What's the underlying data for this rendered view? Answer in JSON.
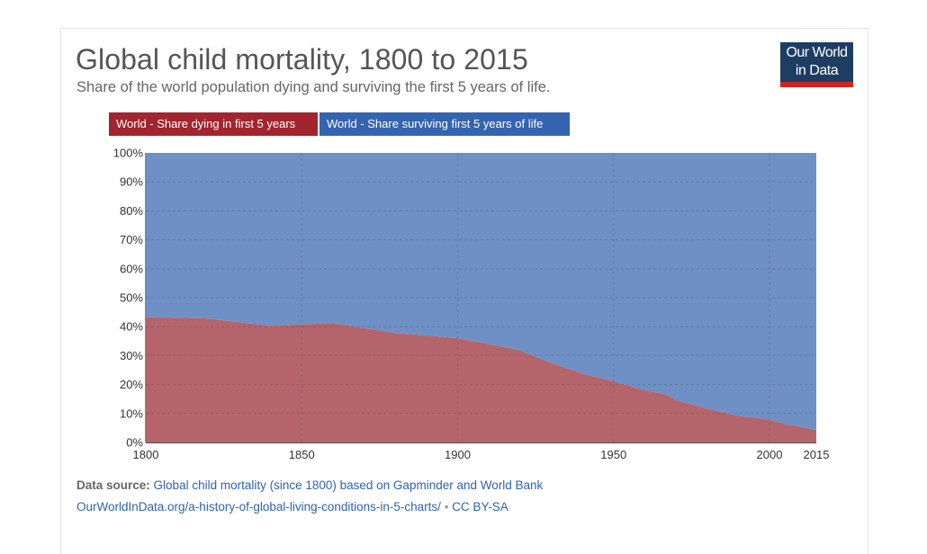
{
  "header": {
    "title": "Global child mortality, 1800 to 2015",
    "subtitle": "Share of the world population dying and surviving the first 5 years of life."
  },
  "logo": {
    "line1": "Our World",
    "line2": "in Data"
  },
  "legend": {
    "dying": "World - Share dying in first 5 years",
    "surviving": "World - Share surviving first 5 years of life"
  },
  "footer": {
    "source_label": "Data source:",
    "source_text": "Global child mortality (since 1800) based on Gapminder and World Bank",
    "url": "OurWorldInData.org/a-history-of-global-living-conditions-in-5-charts/",
    "separator": "•",
    "license": "CC BY-SA"
  },
  "colors": {
    "dying": "#b4656b",
    "surviving": "#6e90c5",
    "legend_dying": "#a2242f",
    "legend_surviving": "#3464b0"
  },
  "chart_data": {
    "type": "area",
    "stacked": true,
    "normalized": true,
    "title": "Global child mortality, 1800 to 2015",
    "xlabel": "",
    "ylabel": "",
    "xlim": [
      1800,
      2015
    ],
    "ylim": [
      0,
      100
    ],
    "x_ticks": [
      1800,
      1850,
      1900,
      1950,
      2000,
      2015
    ],
    "y_ticks": [
      "0%",
      "10%",
      "20%",
      "30%",
      "40%",
      "50%",
      "60%",
      "70%",
      "80%",
      "90%",
      "100%"
    ],
    "grid": true,
    "x": [
      1800,
      1810,
      1820,
      1830,
      1840,
      1850,
      1860,
      1870,
      1880,
      1890,
      1900,
      1910,
      1920,
      1930,
      1940,
      1950,
      1960,
      1967,
      1970,
      1980,
      1990,
      2000,
      2005,
      2010,
      2015
    ],
    "series": [
      {
        "name": "World - Share dying in first 5 years",
        "values": [
          43.3,
          43.1,
          42.8,
          41.5,
          40.3,
          40.8,
          41.2,
          39.5,
          37.8,
          37.0,
          36.0,
          34.0,
          31.8,
          27.5,
          23.8,
          21.1,
          18.0,
          16.6,
          14.6,
          11.7,
          9.2,
          7.9,
          6.4,
          5.4,
          4.3
        ]
      },
      {
        "name": "World - Share surviving first 5 years of life",
        "values": [
          56.7,
          56.9,
          57.2,
          58.5,
          59.7,
          59.2,
          58.8,
          60.5,
          62.2,
          63.0,
          64.0,
          66.0,
          68.2,
          72.5,
          76.2,
          78.9,
          82.0,
          83.4,
          85.4,
          88.3,
          90.8,
          92.1,
          93.6,
          94.6,
          95.7
        ]
      }
    ]
  }
}
